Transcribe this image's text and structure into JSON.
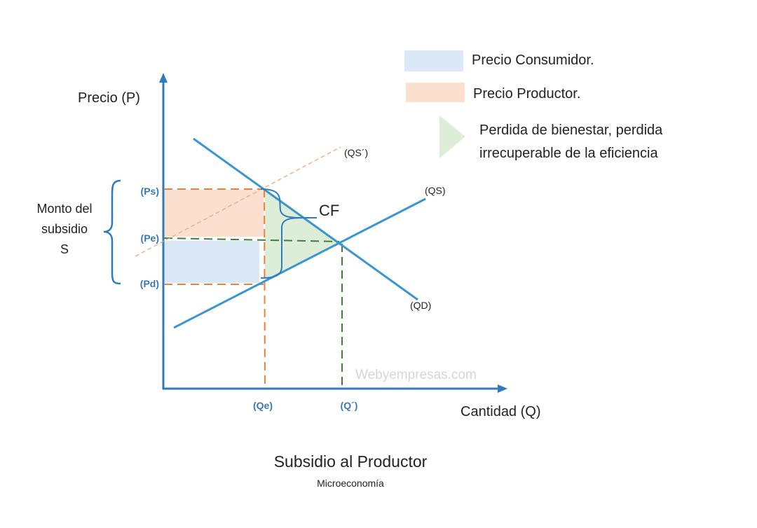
{
  "title": "Subsidio al Productor",
  "subtitle": "Microeconomía",
  "axes": {
    "y_label": "Precio (P)",
    "x_label": "Cantidad (Q)"
  },
  "price_ticks": {
    "ps": "(Ps)",
    "pe": "(Pe)",
    "pd": "(Pd)"
  },
  "quantity_ticks": {
    "qe": "(Qe)",
    "q2": "(Q´)"
  },
  "curves": {
    "qs_shifted": "(QS´)",
    "qs": "(QS)",
    "qd": "(QD)"
  },
  "subsidy_label": [
    "Monto del",
    "subsidio",
    "S"
  ],
  "cf_label": "CF",
  "watermark": "Webyempresas.com",
  "legend": [
    {
      "label": "Precio Consumidor.",
      "color": "#dbe9f6"
    },
    {
      "label": "Precio Productor.",
      "color": "#fbe0d0"
    },
    {
      "label_lines": [
        "Perdida de bienestar, perdida",
        "irrecuperable  de la eficiencia"
      ],
      "color": "#dcedd8"
    }
  ],
  "colors": {
    "axis": "#2f7bbf",
    "curve": "#3a96d0",
    "orange_dash": "#e8843a",
    "green_dash": "#3f7f3a"
  }
}
